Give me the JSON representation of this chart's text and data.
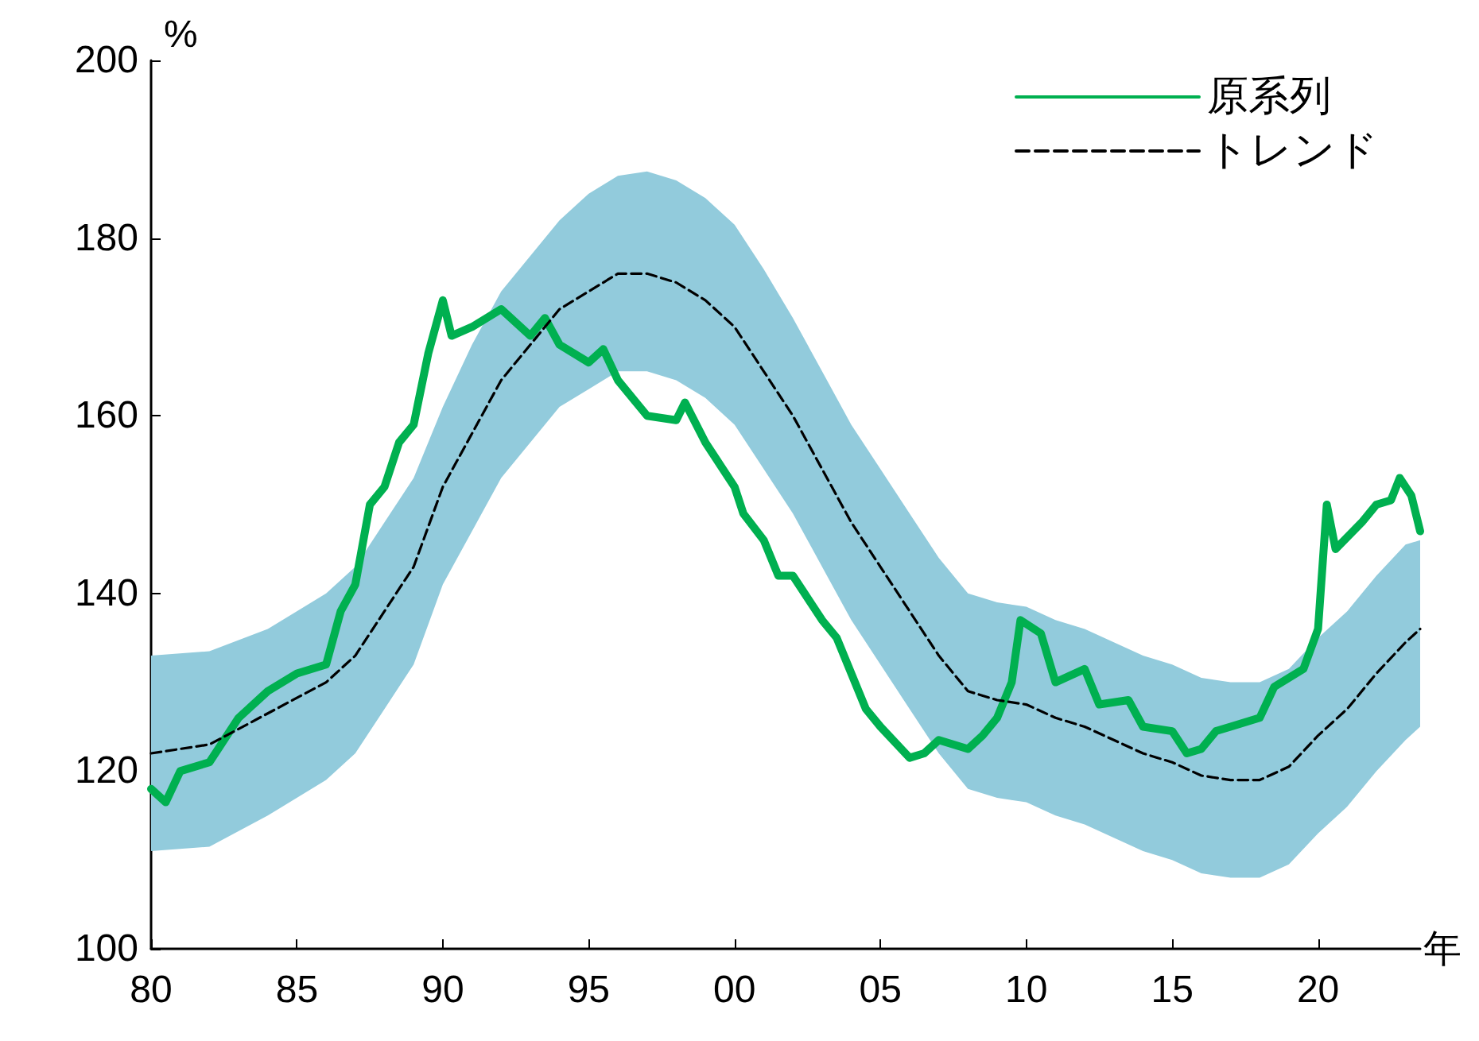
{
  "chart_data": {
    "type": "line",
    "xlabel": "年",
    "ylabel": "%",
    "xlim": [
      1980,
      2023.5
    ],
    "ylim": [
      100,
      200
    ],
    "xticks": [
      {
        "value": 1980,
        "label": "80"
      },
      {
        "value": 1985,
        "label": "85"
      },
      {
        "value": 1990,
        "label": "90"
      },
      {
        "value": 1995,
        "label": "95"
      },
      {
        "value": 2000,
        "label": "00"
      },
      {
        "value": 2005,
        "label": "05"
      },
      {
        "value": 2010,
        "label": "10"
      },
      {
        "value": 2015,
        "label": "15"
      },
      {
        "value": 2020,
        "label": "20"
      }
    ],
    "yticks": [
      100,
      120,
      140,
      160,
      180,
      200
    ],
    "grid": false,
    "legend": "top right",
    "marker": "none",
    "series": [
      {
        "name": "原系列",
        "color": "#00b050",
        "line_style": "solid",
        "x": [
          1980,
          1980.5,
          1981,
          1982,
          1983,
          1984,
          1985,
          1986,
          1986.5,
          1987,
          1987.5,
          1988,
          1988.5,
          1989,
          1989.5,
          1990,
          1990.3,
          1991,
          1992,
          1993,
          1993.5,
          1994,
          1995,
          1995.5,
          1996,
          1997,
          1998,
          1998.3,
          1999,
          2000,
          2000.3,
          2001,
          2001.5,
          2002,
          2003,
          2003.5,
          2004,
          2004.5,
          2005,
          2006,
          2006.5,
          2007,
          2008,
          2008.5,
          2009,
          2009.5,
          2009.8,
          2010.5,
          2011,
          2012,
          2012.5,
          2013.5,
          2014,
          2015,
          2015.5,
          2016,
          2016.5,
          2017,
          2018,
          2018.5,
          2019.5,
          2020,
          2020.3,
          2020.6,
          2021.5,
          2022,
          2022.5,
          2022.8,
          2023.2,
          2023.5
        ],
        "values": [
          118,
          116.5,
          120,
          121,
          126,
          129,
          131,
          132,
          138,
          141,
          150,
          152,
          157,
          159,
          167,
          173,
          169,
          170,
          172,
          169,
          171,
          168,
          166,
          167.5,
          164,
          160,
          159.5,
          161.5,
          157,
          152,
          149,
          146,
          142,
          142,
          137,
          135,
          131,
          127,
          125,
          121.5,
          122,
          123.5,
          122.5,
          124,
          126,
          130,
          137,
          135.5,
          130,
          131.5,
          127.5,
          128,
          125,
          124.5,
          122,
          122.5,
          124.5,
          125,
          126,
          129.5,
          131.5,
          136,
          150,
          145,
          148,
          150,
          150.5,
          153,
          151,
          147
        ]
      },
      {
        "name": "トレンド",
        "color": "#000000",
        "line_style": "dashed",
        "x": [
          1980,
          1982,
          1984,
          1986,
          1987,
          1988,
          1989,
          1990,
          1991,
          1992,
          1993,
          1994,
          1995,
          1996,
          1997,
          1998,
          1999,
          2000,
          2001,
          2002,
          2003,
          2004,
          2005,
          2006,
          2007,
          2008,
          2009,
          2010,
          2011,
          2012,
          2013,
          2014,
          2015,
          2016,
          2017,
          2018,
          2019,
          2020,
          2021,
          2022,
          2023,
          2023.5
        ],
        "values": [
          122,
          123,
          126.5,
          130,
          133,
          138,
          143,
          152,
          158,
          164,
          168,
          172,
          174,
          176,
          176,
          175,
          173,
          170,
          165,
          160,
          154,
          148,
          143,
          138,
          133,
          129,
          128,
          127.5,
          126,
          125,
          123.5,
          122,
          121,
          119.5,
          119,
          119,
          120.5,
          124,
          127,
          131,
          134.5,
          136
        ],
        "upper": [
          133,
          133.5,
          136,
          140,
          143,
          148,
          153,
          161,
          168,
          174,
          178,
          182,
          185,
          187,
          187.5,
          186.5,
          184.5,
          181.5,
          176.5,
          171,
          165,
          159,
          154,
          149,
          144,
          140,
          139,
          138.5,
          137,
          136,
          134.5,
          133,
          132,
          130.5,
          130,
          130,
          131.5,
          135,
          138,
          142,
          145.5,
          146
        ],
        "lower": [
          111,
          111.5,
          115,
          119,
          122,
          127,
          132,
          141,
          147,
          153,
          157,
          161,
          163,
          165,
          165,
          164,
          162,
          159,
          154,
          149,
          143,
          137,
          132,
          127,
          122,
          118,
          117,
          116.5,
          115,
          114,
          112.5,
          111,
          110,
          108.5,
          108,
          108,
          109.5,
          113,
          116,
          120,
          123.5,
          125
        ]
      }
    ]
  }
}
